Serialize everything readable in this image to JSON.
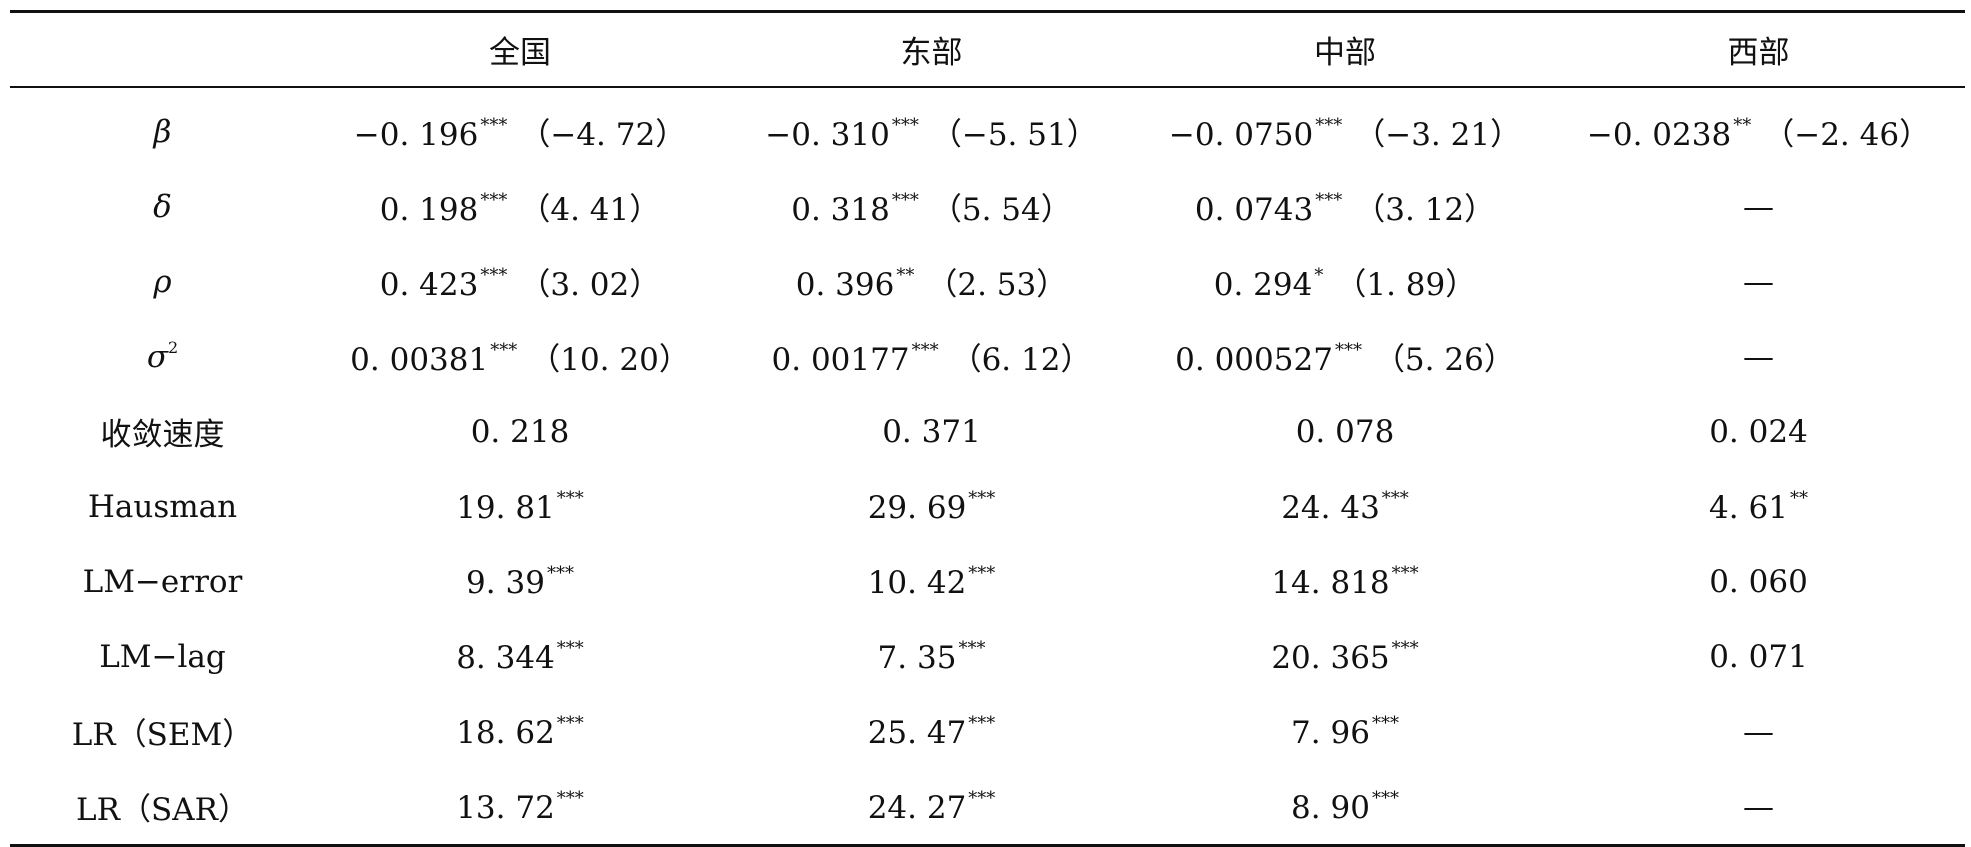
{
  "table": {
    "columns": [
      "",
      "全国",
      "东部",
      "中部",
      "西部"
    ],
    "rows": [
      {
        "label": "β",
        "cells": [
          {
            "value": "−0. 196",
            "sig": "***",
            "tstat": "（−4. 72）"
          },
          {
            "value": "−0. 310",
            "sig": "***",
            "tstat": "（−5. 51）"
          },
          {
            "value": "−0. 0750",
            "sig": "***",
            "tstat": "（−3. 21）"
          },
          {
            "value": "−0. 0238",
            "sig": "**",
            "tstat": "（−2. 46）"
          }
        ]
      },
      {
        "label": "δ",
        "cells": [
          {
            "value": "0. 198",
            "sig": "***",
            "tstat": "（4. 41）"
          },
          {
            "value": "0. 318",
            "sig": "***",
            "tstat": "（5. 54）"
          },
          {
            "value": "0. 0743",
            "sig": "***",
            "tstat": "（3. 12）"
          },
          {
            "value": "—",
            "sig": "",
            "tstat": ""
          }
        ]
      },
      {
        "label": "ρ",
        "cells": [
          {
            "value": "0. 423",
            "sig": "***",
            "tstat": "（3. 02）"
          },
          {
            "value": "0. 396",
            "sig": "**",
            "tstat": "（2. 53）"
          },
          {
            "value": "0. 294",
            "sig": "*",
            "tstat": "（1. 89）"
          },
          {
            "value": "—",
            "sig": "",
            "tstat": ""
          }
        ]
      },
      {
        "label": "σ",
        "label_sup": "2",
        "cells": [
          {
            "value": "0. 00381",
            "sig": "***",
            "tstat": "（10. 20）"
          },
          {
            "value": "0. 00177",
            "sig": "***",
            "tstat": "（6. 12）"
          },
          {
            "value": "0. 000527",
            "sig": "***",
            "tstat": "（5. 26）"
          },
          {
            "value": "—",
            "sig": "",
            "tstat": ""
          }
        ]
      },
      {
        "label": "收敛速度",
        "cells": [
          {
            "value": "0. 218",
            "sig": "",
            "tstat": ""
          },
          {
            "value": "0. 371",
            "sig": "",
            "tstat": ""
          },
          {
            "value": "0. 078",
            "sig": "",
            "tstat": ""
          },
          {
            "value": "0. 024",
            "sig": "",
            "tstat": ""
          }
        ]
      },
      {
        "label": "Hausman",
        "cells": [
          {
            "value": "19. 81",
            "sig": "***",
            "tstat": ""
          },
          {
            "value": "29. 69",
            "sig": "***",
            "tstat": ""
          },
          {
            "value": "24. 43",
            "sig": "***",
            "tstat": ""
          },
          {
            "value": "4. 61",
            "sig": "**",
            "tstat": ""
          }
        ]
      },
      {
        "label": "LM−error",
        "cells": [
          {
            "value": "9. 39",
            "sig": "***",
            "tstat": ""
          },
          {
            "value": "10. 42",
            "sig": "***",
            "tstat": ""
          },
          {
            "value": "14. 818",
            "sig": "***",
            "tstat": ""
          },
          {
            "value": "0. 060",
            "sig": "",
            "tstat": ""
          }
        ]
      },
      {
        "label": "LM−lag",
        "cells": [
          {
            "value": "8. 344",
            "sig": "***",
            "tstat": ""
          },
          {
            "value": "7. 35",
            "sig": "***",
            "tstat": ""
          },
          {
            "value": "20. 365",
            "sig": "***",
            "tstat": ""
          },
          {
            "value": "0. 071",
            "sig": "",
            "tstat": ""
          }
        ]
      },
      {
        "label": "LR（SEM）",
        "cells": [
          {
            "value": "18. 62",
            "sig": "***",
            "tstat": ""
          },
          {
            "value": "25. 47",
            "sig": "***",
            "tstat": ""
          },
          {
            "value": "7. 96",
            "sig": "***",
            "tstat": ""
          },
          {
            "value": "—",
            "sig": "",
            "tstat": ""
          }
        ]
      },
      {
        "label": "LR（SAR）",
        "cells": [
          {
            "value": "13. 72",
            "sig": "***",
            "tstat": ""
          },
          {
            "value": "24. 27",
            "sig": "***",
            "tstat": ""
          },
          {
            "value": "8. 90",
            "sig": "***",
            "tstat": ""
          },
          {
            "value": "—",
            "sig": "",
            "tstat": ""
          }
        ]
      }
    ]
  }
}
